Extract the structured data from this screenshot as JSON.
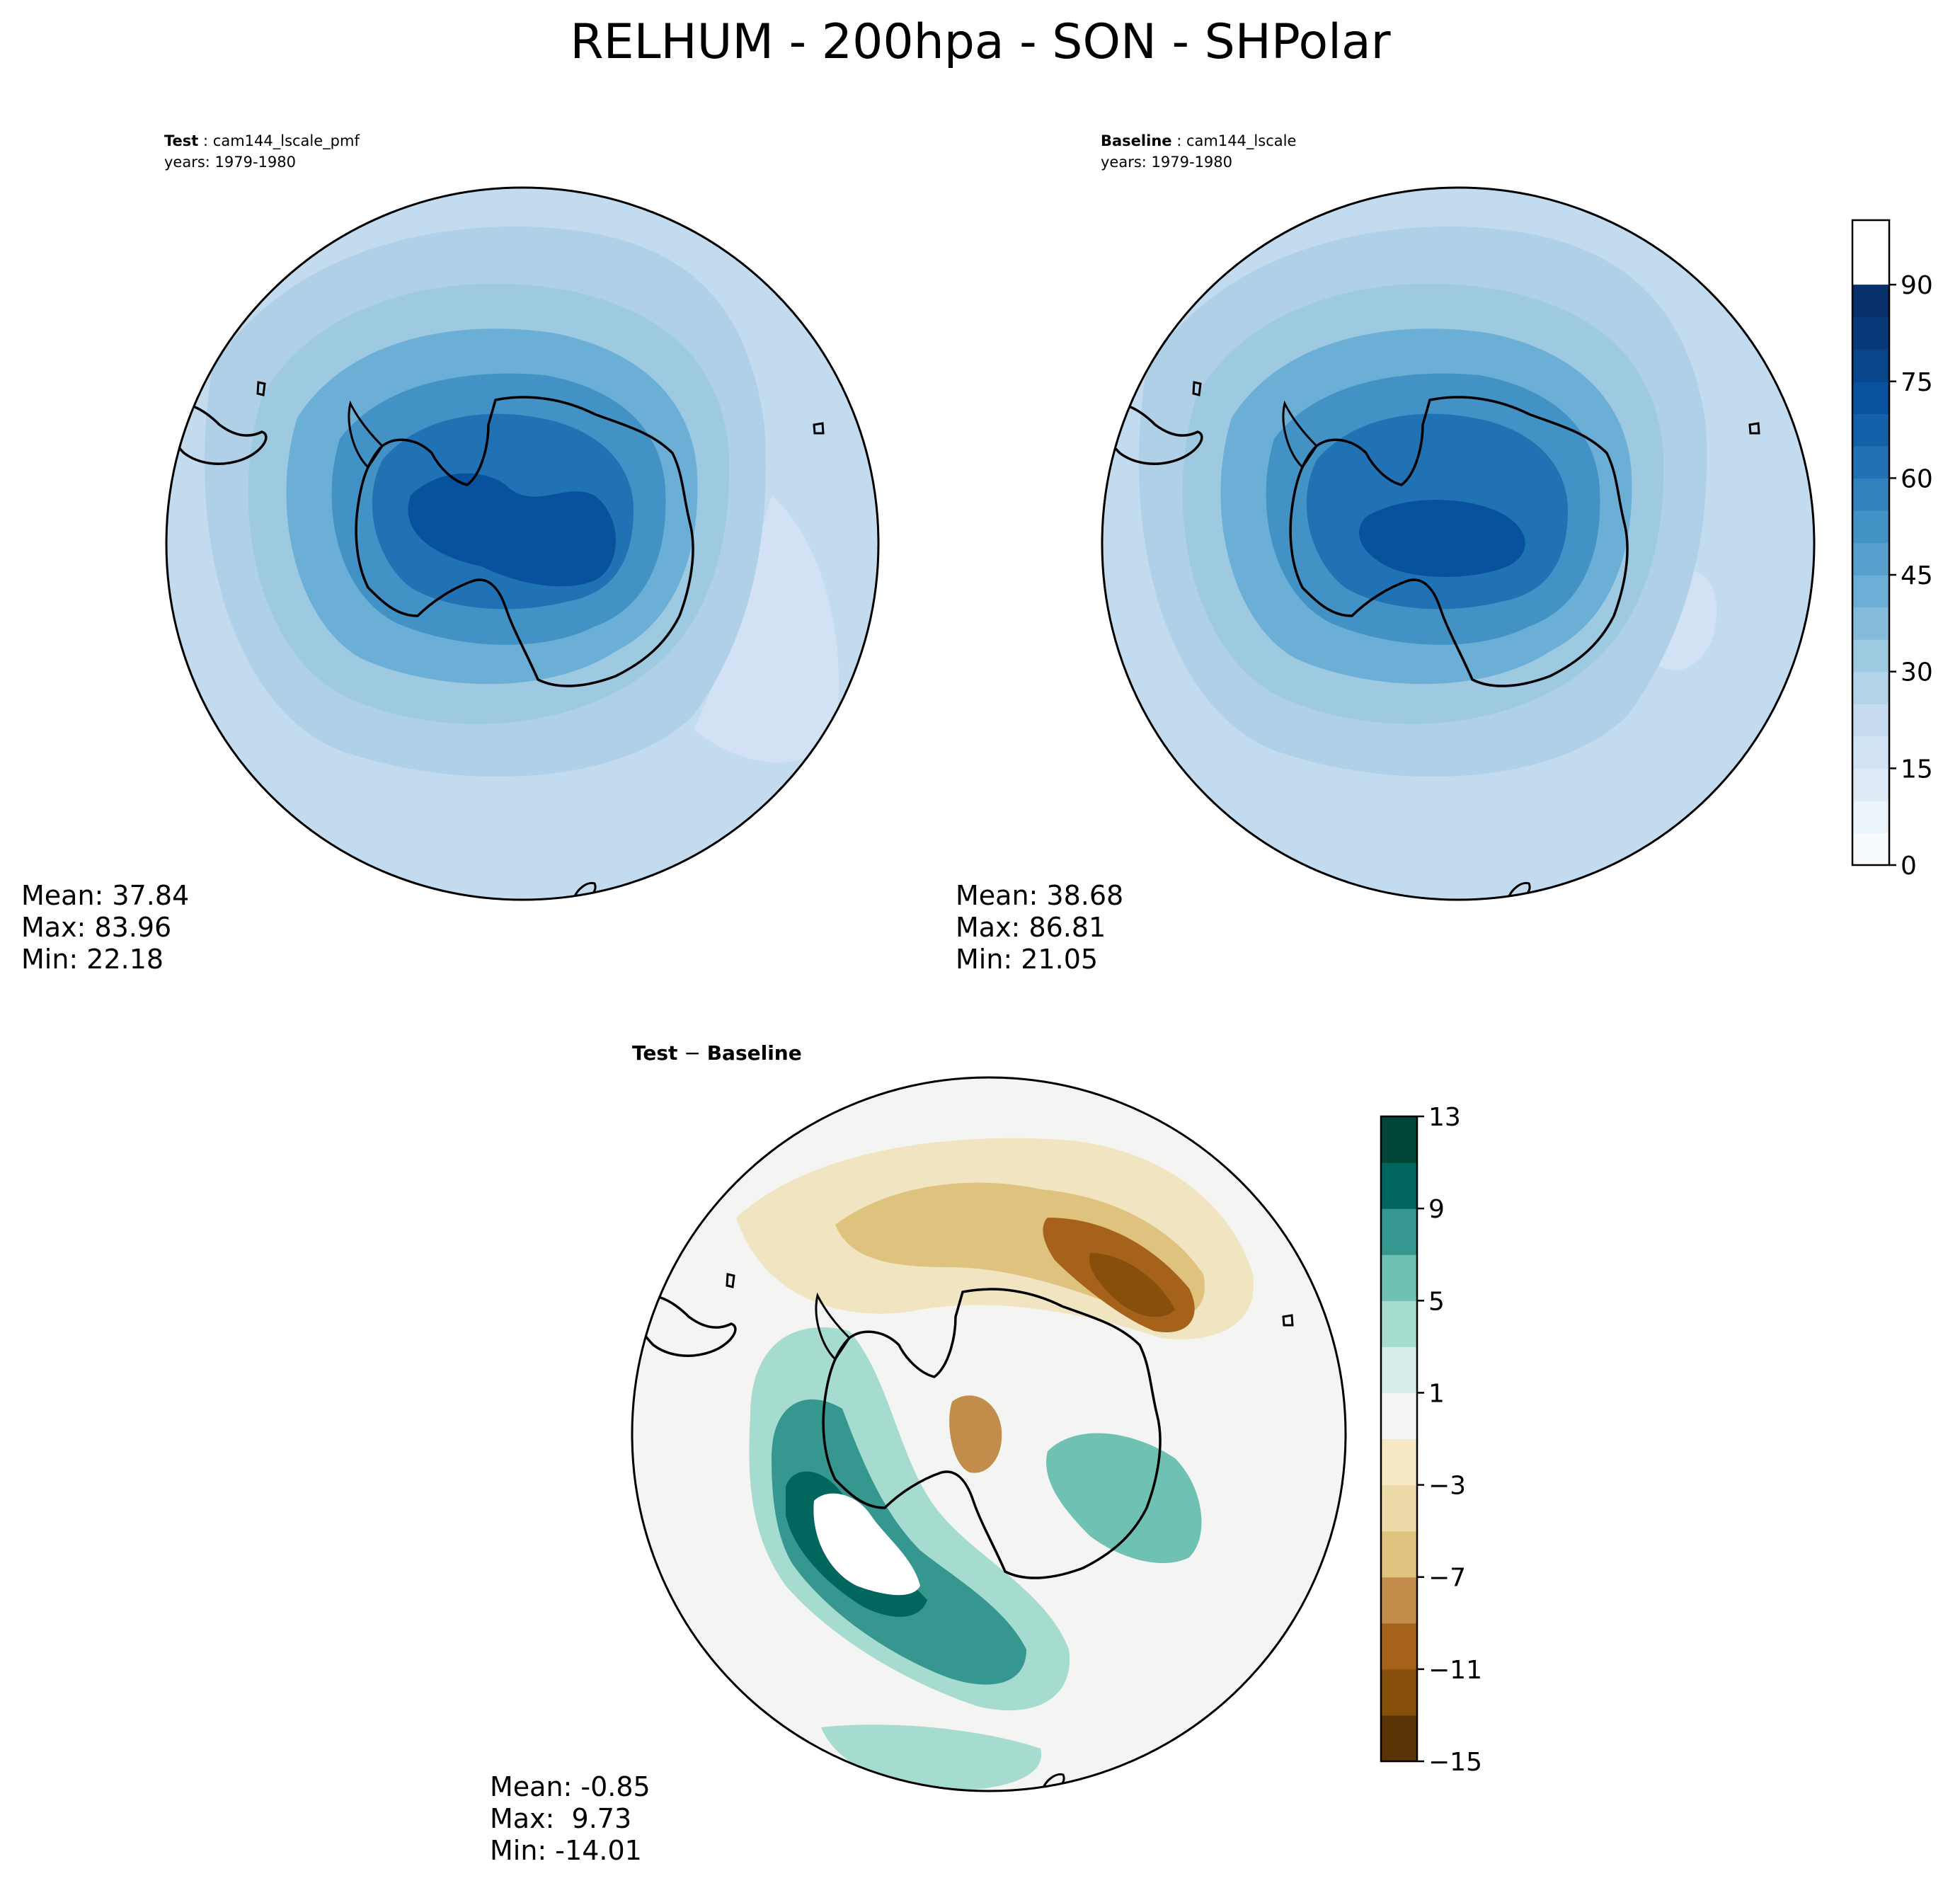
{
  "figure": {
    "title": "RELHUM - 200hpa - SON - SHPolar"
  },
  "chart_data": [
    {
      "type": "heatmap",
      "projection": "south-polar-stereographic",
      "panel_label_bold": "Test",
      "panel_label_sep": ":",
      "panel_label_name": "cam144_lscale_pmf",
      "years": "years: 1979-1980",
      "stats": {
        "mean": "Mean: 37.84",
        "max": "Max: 83.96",
        "min": "Min: 22.18"
      },
      "variable": "RELHUM",
      "level_hpa": 200,
      "season": "SON"
    },
    {
      "type": "heatmap",
      "projection": "south-polar-stereographic",
      "panel_label_bold": "Baseline",
      "panel_label_sep": ":",
      "panel_label_name": "cam144_lscale",
      "years": "years: 1979-1980",
      "stats": {
        "mean": "Mean: 38.68",
        "max": "Max: 86.81",
        "min": "Min: 21.05"
      },
      "colorbar": {
        "range": [
          0,
          100
        ],
        "levels": [
          0,
          5,
          10,
          15,
          20,
          25,
          30,
          35,
          40,
          45,
          50,
          55,
          60,
          65,
          70,
          75,
          80,
          85,
          90,
          95,
          100
        ],
        "ticks": [
          "0",
          "15",
          "30",
          "45",
          "60",
          "75",
          "90"
        ],
        "tick_values": [
          0,
          15,
          30,
          45,
          60,
          75,
          90
        ],
        "colors": [
          "#f7fbff",
          "#ebf3fb",
          "#deebf7",
          "#d2e3f3",
          "#c6dbef",
          "#b3d3e8",
          "#9ecae1",
          "#85bcdc",
          "#6baed6",
          "#57a0ce",
          "#4292c6",
          "#3282be",
          "#2171b5",
          "#1361a9",
          "#08519c",
          "#08458a",
          "#083a7a",
          "#08306b"
        ]
      }
    },
    {
      "type": "heatmap",
      "projection": "south-polar-stereographic",
      "panel_label_a": "Test",
      "panel_label_minus": "−",
      "panel_label_b": "Baseline",
      "stats": {
        "mean": "Mean: -0.85",
        "max": "Max:  9.73",
        "min": "Min: -14.01"
      },
      "colorbar": {
        "range": [
          -15,
          13
        ],
        "levels": [
          -15,
          -13,
          -11,
          -9,
          -7,
          -5,
          -3,
          -1,
          1,
          3,
          5,
          7,
          9,
          11,
          13
        ],
        "ticks": [
          "13",
          "9",
          "5",
          "1",
          "−3",
          "−7",
          "−11",
          "−15"
        ],
        "tick_values": [
          13,
          9,
          5,
          1,
          -3,
          -7,
          -11,
          -15
        ],
        "colors": [
          "#5a3407",
          "#864f0b",
          "#a6611a",
          "#c28d4b",
          "#dfc27d",
          "#ecd9a8",
          "#f6e8c3",
          "#f5f5f5",
          "#d7eeea",
          "#a6dbd0",
          "#6ec1b3",
          "#35978f",
          "#01665e",
          "#014636"
        ]
      }
    }
  ]
}
